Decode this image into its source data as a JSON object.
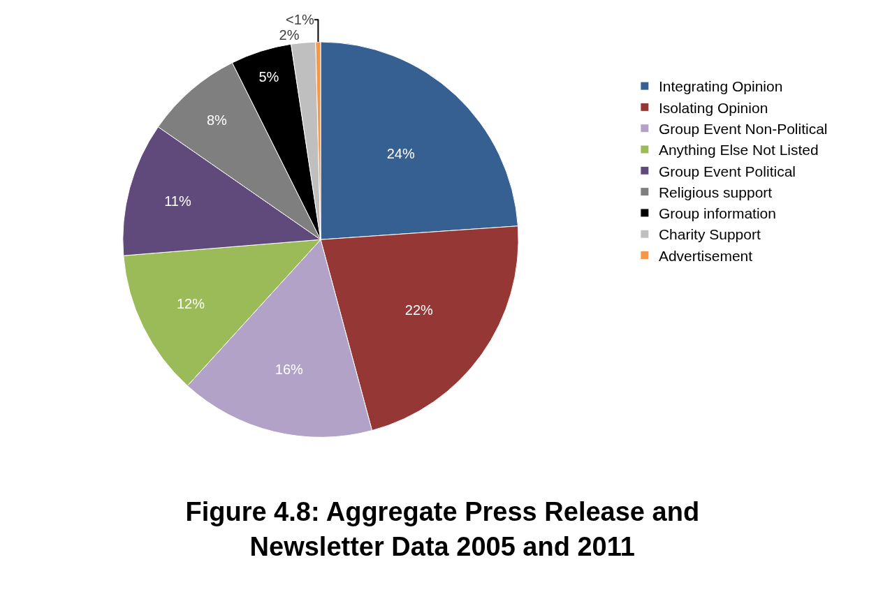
{
  "chart_data": {
    "type": "pie",
    "title": "Figure 4.8: Aggregate Press Release and Newsletter Data 2005 and 2011",
    "categories": [
      "Integrating Opinion",
      "Isolating Opinion",
      "Group Event Non-Political",
      "Anything Else Not Listed",
      "Group Event Political",
      "Religious support",
      "Group information",
      "Charity Support",
      "Advertisement"
    ],
    "values": [
      24,
      22,
      16,
      12,
      11,
      8,
      5,
      2,
      0.4
    ],
    "value_labels": [
      "24%",
      "22%",
      "16%",
      "12%",
      "11%",
      "8%",
      "5%",
      "2%",
      "<1%"
    ],
    "colors": [
      "#376092",
      "#953735",
      "#b3a2c7",
      "#9bbb59",
      "#604a7b",
      "#7f7f7f",
      "#000000",
      "#bfbfbf",
      "#f79646"
    ],
    "legend": "right"
  }
}
